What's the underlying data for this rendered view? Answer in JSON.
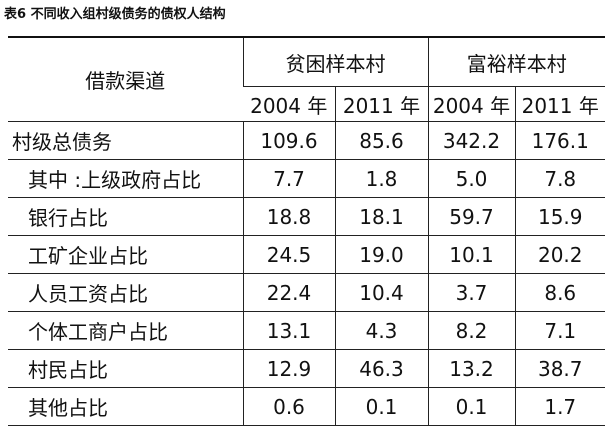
{
  "title": "表6 不同收入组村级债务的债权人结构",
  "table": {
    "header": {
      "label": "借款渠道",
      "groups": [
        "贫困样本村",
        "富裕样本村"
      ],
      "years": [
        "2004 年",
        "2011 年",
        "2004 年",
        "2011 年"
      ]
    },
    "rows": [
      [
        "村级总债务",
        "109.6",
        "85.6",
        "342.2",
        "176.1"
      ],
      [
        "其中 :上级政府占比",
        "7.7",
        "1.8",
        "5.0",
        "7.8"
      ],
      [
        "银行占比",
        "18.8",
        "18.1",
        "59.7",
        "15.9"
      ],
      [
        "工矿企业占比",
        "24.5",
        "19.0",
        "10.1",
        "20.2"
      ],
      [
        "人员工资占比",
        "22.4",
        "10.4",
        "3.7",
        "8.6"
      ],
      [
        "个体工商户占比",
        "13.1",
        "4.3",
        "8.2",
        "7.1"
      ],
      [
        "村民占比",
        "12.9",
        "46.3",
        "13.2",
        "38.7"
      ],
      [
        "其他占比",
        "0.6",
        "0.1",
        "0.1",
        "1.7"
      ]
    ]
  }
}
